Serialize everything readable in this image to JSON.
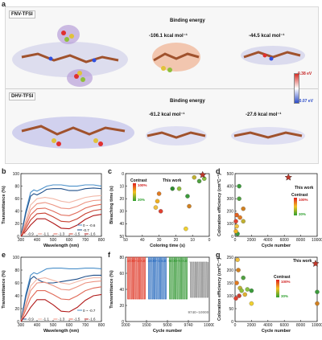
{
  "figure": {
    "labels": {
      "a": "a",
      "b": "b",
      "c": "c",
      "d": "d",
      "e": "e",
      "f": "f",
      "g": "g"
    }
  },
  "panel_a": {
    "top": {
      "tag": "FNV-TFSI",
      "heading": "Binding energy",
      "energy1": "-106.1 kcal mol⁻¹",
      "energy2": "-44.5 kcal mol⁻¹"
    },
    "bottom": {
      "tag": "DHV-TFSI",
      "heading": "Binding energy",
      "energy1": "-61.2 kcal mol⁻¹",
      "energy2": "-27.6 kcal mol⁻¹"
    },
    "colorbar": {
      "max": "0.38 eV",
      "min": "-0.07 eV",
      "colors": {
        "high": "#d73027",
        "mid": "#ffffff",
        "low": "#2c4cc8"
      }
    },
    "molecule_colors": {
      "carbon": "#a0522d",
      "fluorine": "#8fbf3a",
      "oxygen": "#e03030",
      "sulfur": "#e0c23a",
      "nitrogen": "#3050e0"
    }
  },
  "chart_data": [
    {
      "id": "b",
      "type": "line",
      "xlabel": "Wavelength (nm)",
      "ylabel": "Transmittance (%)",
      "xlim": [
        300,
        800
      ],
      "ylim": [
        0,
        100
      ],
      "xticks": [
        300,
        400,
        500,
        600,
        700,
        800
      ],
      "yticks": [
        0,
        20,
        40,
        60,
        80,
        100
      ],
      "legend": [
        "0 ~ -0.6",
        "-0.7",
        "-0.9",
        "-1.1",
        "-1.3",
        "-1.5",
        "-1.6"
      ],
      "series": [
        {
          "name": "0 ~ -0.6",
          "color": "#4a8fc9",
          "x": [
            300,
            330,
            360,
            380,
            400,
            430,
            460,
            500,
            550,
            600,
            650,
            700,
            750,
            800
          ],
          "y": [
            0,
            40,
            70,
            74,
            72,
            76,
            80,
            82,
            82,
            80,
            80,
            82,
            82,
            80
          ]
        },
        {
          "name": "-0.7",
          "color": "#1f4f8a",
          "x": [
            300,
            330,
            360,
            380,
            400,
            430,
            460,
            500,
            550,
            600,
            650,
            700,
            750,
            800
          ],
          "y": [
            0,
            36,
            64,
            68,
            66,
            70,
            75,
            76,
            76,
            73,
            73,
            76,
            77,
            76
          ]
        },
        {
          "name": "-0.9",
          "color": "#f2b8a8",
          "x": [
            300,
            330,
            360,
            400,
            450,
            500,
            550,
            600,
            650,
            700,
            750,
            800
          ],
          "y": [
            0,
            25,
            50,
            60,
            62,
            60,
            56,
            54,
            58,
            62,
            64,
            65
          ]
        },
        {
          "name": "-1.1",
          "color": "#ec9280",
          "x": [
            300,
            330,
            360,
            400,
            450,
            500,
            550,
            600,
            650,
            700,
            750,
            800
          ],
          "y": [
            0,
            20,
            42,
            52,
            54,
            50,
            45,
            44,
            48,
            54,
            57,
            58
          ]
        },
        {
          "name": "-1.3",
          "color": "#e06a58",
          "x": [
            300,
            330,
            360,
            400,
            450,
            500,
            550,
            600,
            650,
            700,
            750,
            800
          ],
          "y": [
            0,
            16,
            34,
            44,
            45,
            40,
            34,
            33,
            38,
            45,
            49,
            51
          ]
        },
        {
          "name": "-1.5",
          "color": "#c84030",
          "x": [
            300,
            330,
            360,
            400,
            450,
            500,
            550,
            600,
            650,
            700,
            750,
            800
          ],
          "y": [
            0,
            12,
            26,
            36,
            37,
            31,
            24,
            23,
            28,
            36,
            41,
            43
          ]
        },
        {
          "name": "-1.6",
          "color": "#b01818",
          "x": [
            300,
            330,
            360,
            400,
            450,
            500,
            550,
            600,
            650,
            700,
            750,
            800
          ],
          "y": [
            0,
            8,
            18,
            28,
            28,
            21,
            13,
            12,
            18,
            27,
            33,
            35
          ]
        }
      ]
    },
    {
      "id": "c",
      "type": "scatter",
      "xlabel": "Coloring time (s)",
      "ylabel": "Bleaching time (s)",
      "xlim": [
        50,
        0
      ],
      "ylim": [
        50,
        0
      ],
      "xticks": [
        50,
        40,
        30,
        20,
        10,
        0
      ],
      "yticks": [
        0,
        10,
        20,
        30,
        40,
        50
      ],
      "annotation": "This work",
      "legend_title": "Contrast",
      "legend_high": "100%",
      "legend_low": "30%",
      "points": [
        {
          "x": 22,
          "y": 12,
          "color": "#2e8b2e"
        },
        {
          "x": 18,
          "y": 12,
          "color": "#8fbf3a"
        },
        {
          "x": 30,
          "y": 16,
          "color": "#e07a20"
        },
        {
          "x": 31,
          "y": 22,
          "color": "#f0b020"
        },
        {
          "x": 32,
          "y": 27,
          "color": "#f0c040"
        },
        {
          "x": 29,
          "y": 30,
          "color": "#e04030"
        },
        {
          "x": 9,
          "y": 3,
          "color": "#c0b030"
        },
        {
          "x": 6,
          "y": 6,
          "color": "#50a040"
        },
        {
          "x": 3,
          "y": 4,
          "color": "#88c040"
        },
        {
          "x": 13,
          "y": 18,
          "color": "#3b9b3b"
        },
        {
          "x": 12,
          "y": 26,
          "color": "#d08020"
        },
        {
          "x": 14,
          "y": 44,
          "color": "#f0d030"
        }
      ],
      "star": {
        "x": 4,
        "y": 1
      }
    },
    {
      "id": "d",
      "type": "scatter",
      "xlabel": "Cycle number",
      "ylabel": "Coloration efficiency (cm²C⁻¹)",
      "xlim": [
        0,
        10000
      ],
      "ylim": [
        0,
        500
      ],
      "xticks": [
        0,
        2000,
        4000,
        6000,
        8000,
        10000
      ],
      "yticks": [
        0,
        100,
        200,
        300,
        400,
        500
      ],
      "annotation": "This work",
      "legend_title": "Contrast",
      "legend_high": "100%",
      "legend_low": "30%",
      "points": [
        {
          "x": 100,
          "y": 120,
          "color": "#e04030"
        },
        {
          "x": 200,
          "y": 80,
          "color": "#f0c040"
        },
        {
          "x": 300,
          "y": 20,
          "color": "#3b9b3b"
        },
        {
          "x": 500,
          "y": 300,
          "color": "#50a040"
        },
        {
          "x": 500,
          "y": 400,
          "color": "#3b9b3b"
        },
        {
          "x": 600,
          "y": 150,
          "color": "#e07a20"
        },
        {
          "x": 1000,
          "y": 220,
          "color": "#d08020"
        },
        {
          "x": 1000,
          "y": 120,
          "color": "#c0b030"
        },
        {
          "x": 200,
          "y": 170,
          "color": "#e06020"
        },
        {
          "x": 100,
          "y": 40,
          "color": "#f0b020"
        }
      ],
      "star": {
        "x": 6500,
        "y": 470
      }
    },
    {
      "id": "e",
      "type": "line",
      "xlabel": "Wavelength (nm)",
      "ylabel": "Transmittance (%)",
      "xlim": [
        300,
        800
      ],
      "ylim": [
        0,
        100
      ],
      "xticks": [
        300,
        400,
        500,
        600,
        700,
        800
      ],
      "yticks": [
        0,
        20,
        40,
        60,
        80,
        100
      ],
      "legend": [
        "0 ~ -0.7",
        "-0.9",
        "-1.1",
        "-1.3",
        "-1.5",
        "-1.6"
      ],
      "series": [
        {
          "name": "0 ~ -0.7",
          "color": "#4a8fc9",
          "x": [
            300,
            330,
            360,
            380,
            400,
            430,
            460,
            500,
            550,
            600,
            650,
            700,
            750,
            800
          ],
          "y": [
            0,
            42,
            72,
            76,
            74,
            78,
            82,
            83,
            83,
            82,
            82,
            83,
            83,
            82
          ]
        },
        {
          "name": "-0.9",
          "color": "#1f4f8a",
          "x": [
            300,
            330,
            360,
            380,
            400,
            430,
            460,
            500,
            550,
            600,
            650,
            700,
            750,
            800
          ],
          "y": [
            0,
            38,
            66,
            70,
            66,
            62,
            60,
            60,
            62,
            64,
            66,
            70,
            72,
            72
          ]
        },
        {
          "name": "-1.1",
          "color": "#f2b8a8",
          "x": [
            300,
            330,
            360,
            400,
            450,
            500,
            550,
            600,
            650,
            700,
            750,
            800
          ],
          "y": [
            0,
            28,
            55,
            66,
            68,
            64,
            60,
            58,
            62,
            66,
            68,
            68
          ]
        },
        {
          "name": "-1.3",
          "color": "#ec9280",
          "x": [
            300,
            330,
            360,
            400,
            450,
            500,
            550,
            600,
            650,
            700,
            750,
            800
          ],
          "y": [
            0,
            24,
            48,
            60,
            61,
            56,
            50,
            49,
            54,
            60,
            62,
            63
          ]
        },
        {
          "name": "-1.5",
          "color": "#e06a58",
          "x": [
            300,
            330,
            360,
            400,
            450,
            500,
            550,
            600,
            650,
            700,
            750,
            800
          ],
          "y": [
            0,
            18,
            36,
            48,
            48,
            42,
            35,
            34,
            40,
            48,
            52,
            54
          ]
        },
        {
          "name": "-1.6",
          "color": "#b01818",
          "x": [
            300,
            330,
            360,
            400,
            450,
            500,
            550,
            600,
            650,
            700,
            750,
            800
          ],
          "y": [
            0,
            10,
            22,
            34,
            34,
            26,
            16,
            15,
            22,
            33,
            40,
            42
          ]
        }
      ]
    },
    {
      "id": "f",
      "type": "line",
      "xlabel": "Cycle number",
      "ylabel": "Transmittance (%)",
      "ylim": [
        0,
        80
      ],
      "yticks": [
        0,
        20,
        40,
        60,
        80
      ],
      "xtick_labels": [
        "1000",
        "1500",
        "5000",
        "9740",
        "10000"
      ],
      "segments": [
        {
          "label": "1000~1010",
          "color": "#e04030",
          "high": 80,
          "low": 28,
          "cycles": 10
        },
        {
          "label": "1500~1510",
          "color": "#3070c0",
          "high": 80,
          "low": 28,
          "cycles": 10
        },
        {
          "label": "5000~5010",
          "color": "#3b9b3b",
          "high": 80,
          "low": 28,
          "cycles": 10
        },
        {
          "label": "9740~10000",
          "color": "#8a8a8a",
          "high": 74,
          "low": 30,
          "cycles": 10
        }
      ]
    },
    {
      "id": "g",
      "type": "scatter",
      "xlabel": "Cycle number",
      "ylabel": "Coloration efficiency (cm²C⁻¹)",
      "xlim": [
        0,
        10000
      ],
      "ylim": [
        0,
        250
      ],
      "xticks": [
        0,
        2000,
        4000,
        6000,
        8000,
        10000
      ],
      "yticks": [
        0,
        50,
        100,
        150,
        200,
        250
      ],
      "annotation": "This work",
      "legend_title": "Contrast",
      "legend_high": "100%",
      "legend_low": "30%",
      "points": [
        {
          "x": 100,
          "y": 90,
          "color": "#e04030"
        },
        {
          "x": 200,
          "y": 150,
          "color": "#e07a20"
        },
        {
          "x": 300,
          "y": 240,
          "color": "#f0c040"
        },
        {
          "x": 400,
          "y": 200,
          "color": "#d08020"
        },
        {
          "x": 500,
          "y": 100,
          "color": "#c84030"
        },
        {
          "x": 600,
          "y": 130,
          "color": "#c0b030"
        },
        {
          "x": 800,
          "y": 120,
          "color": "#8fbf3a"
        },
        {
          "x": 1000,
          "y": 170,
          "color": "#50a040"
        },
        {
          "x": 1200,
          "y": 105,
          "color": "#e0b030"
        },
        {
          "x": 1500,
          "y": 125,
          "color": "#88c040"
        },
        {
          "x": 2000,
          "y": 120,
          "color": "#3b9b3b"
        },
        {
          "x": 2000,
          "y": 70,
          "color": "#f0d030"
        },
        {
          "x": 10000,
          "y": 115,
          "color": "#3b9b3b"
        },
        {
          "x": 10000,
          "y": 70,
          "color": "#d08020"
        }
      ],
      "star": {
        "x": 9800,
        "y": 225
      }
    }
  ]
}
